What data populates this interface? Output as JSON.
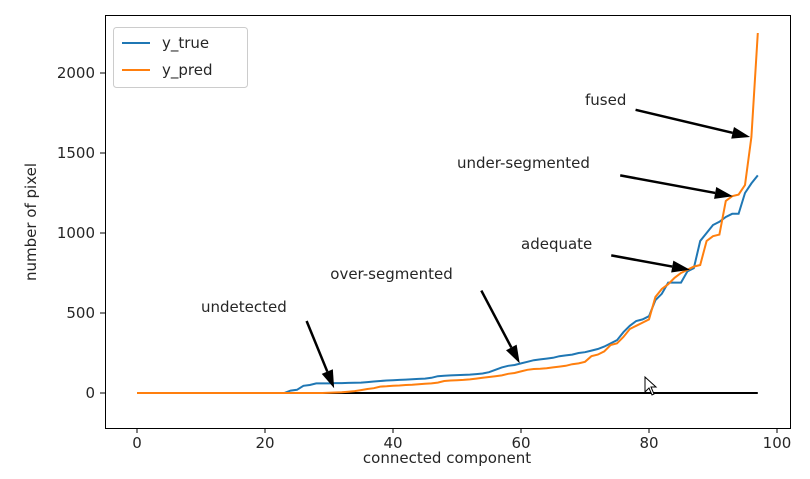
{
  "chart_data": {
    "type": "line",
    "title": "",
    "xlabel": "connected component",
    "ylabel": "number of pixel",
    "xlim": [
      -5,
      102
    ],
    "ylim": [
      -220,
      2360
    ],
    "xticks": [
      0,
      20,
      40,
      60,
      80,
      100
    ],
    "yticks": [
      0,
      500,
      1000,
      1500,
      2000
    ],
    "grid": false,
    "legend_position": "top-left",
    "series": [
      {
        "name": "y_true",
        "color": "#1f77b4",
        "values": [
          0,
          0,
          0,
          0,
          0,
          0,
          0,
          0,
          0,
          0,
          0,
          0,
          0,
          0,
          0,
          0,
          0,
          0,
          0,
          0,
          0,
          0,
          0,
          0,
          15,
          20,
          45,
          50,
          60,
          60,
          60,
          62,
          62,
          63,
          64,
          65,
          68,
          72,
          75,
          78,
          80,
          82,
          84,
          86,
          88,
          90,
          95,
          105,
          108,
          110,
          112,
          113,
          115,
          118,
          122,
          130,
          145,
          160,
          170,
          175,
          185,
          195,
          205,
          210,
          215,
          220,
          230,
          235,
          240,
          250,
          255,
          265,
          275,
          290,
          310,
          330,
          380,
          420,
          450,
          460,
          480,
          580,
          620,
          690,
          690,
          690,
          760,
          780,
          950,
          1000,
          1050,
          1070,
          1100,
          1120,
          1120,
          1250,
          1310,
          1360
        ]
      },
      {
        "name": "y_pred",
        "color": "#ff7f0e",
        "values": [
          0,
          0,
          0,
          0,
          0,
          0,
          0,
          0,
          0,
          0,
          0,
          0,
          0,
          0,
          0,
          0,
          0,
          0,
          0,
          0,
          0,
          0,
          0,
          0,
          0,
          0,
          0,
          0,
          0,
          0,
          2,
          3,
          5,
          8,
          12,
          18,
          25,
          30,
          40,
          42,
          45,
          47,
          50,
          52,
          55,
          58,
          60,
          65,
          75,
          78,
          80,
          82,
          85,
          90,
          95,
          100,
          105,
          110,
          120,
          125,
          135,
          145,
          150,
          152,
          155,
          160,
          165,
          170,
          180,
          185,
          195,
          230,
          240,
          260,
          300,
          310,
          350,
          400,
          420,
          440,
          460,
          600,
          650,
          680,
          720,
          750,
          770,
          790,
          800,
          950,
          980,
          990,
          1200,
          1230,
          1240,
          1300,
          1600,
          2250
        ]
      }
    ],
    "baseline": {
      "y": 0,
      "x_range": [
        0,
        97
      ],
      "color": "#000000"
    },
    "annotations": [
      {
        "text": "undetected",
        "xytext": [
          10,
          506
        ],
        "arrow_from": [
          26.5,
          450
        ],
        "xy": [
          30.8,
          30
        ]
      },
      {
        "text": "over-segmented",
        "xytext": [
          30.2,
          712
        ],
        "arrow_from": [
          53.8,
          640
        ],
        "xy": [
          59.8,
          185
        ]
      },
      {
        "text": "adequate",
        "xytext": [
          60,
          900
        ],
        "arrow_from": [
          74.1,
          860
        ],
        "xy": [
          86.4,
          770
        ]
      },
      {
        "text": "under-segmented",
        "xytext": [
          50,
          1406
        ],
        "arrow_from": [
          75.5,
          1360
        ],
        "xy": [
          93.1,
          1230
        ]
      },
      {
        "text": "fused",
        "xytext": [
          70,
          1800
        ],
        "arrow_from": [
          77.9,
          1770
        ],
        "xy": [
          95.8,
          1600
        ]
      }
    ]
  }
}
